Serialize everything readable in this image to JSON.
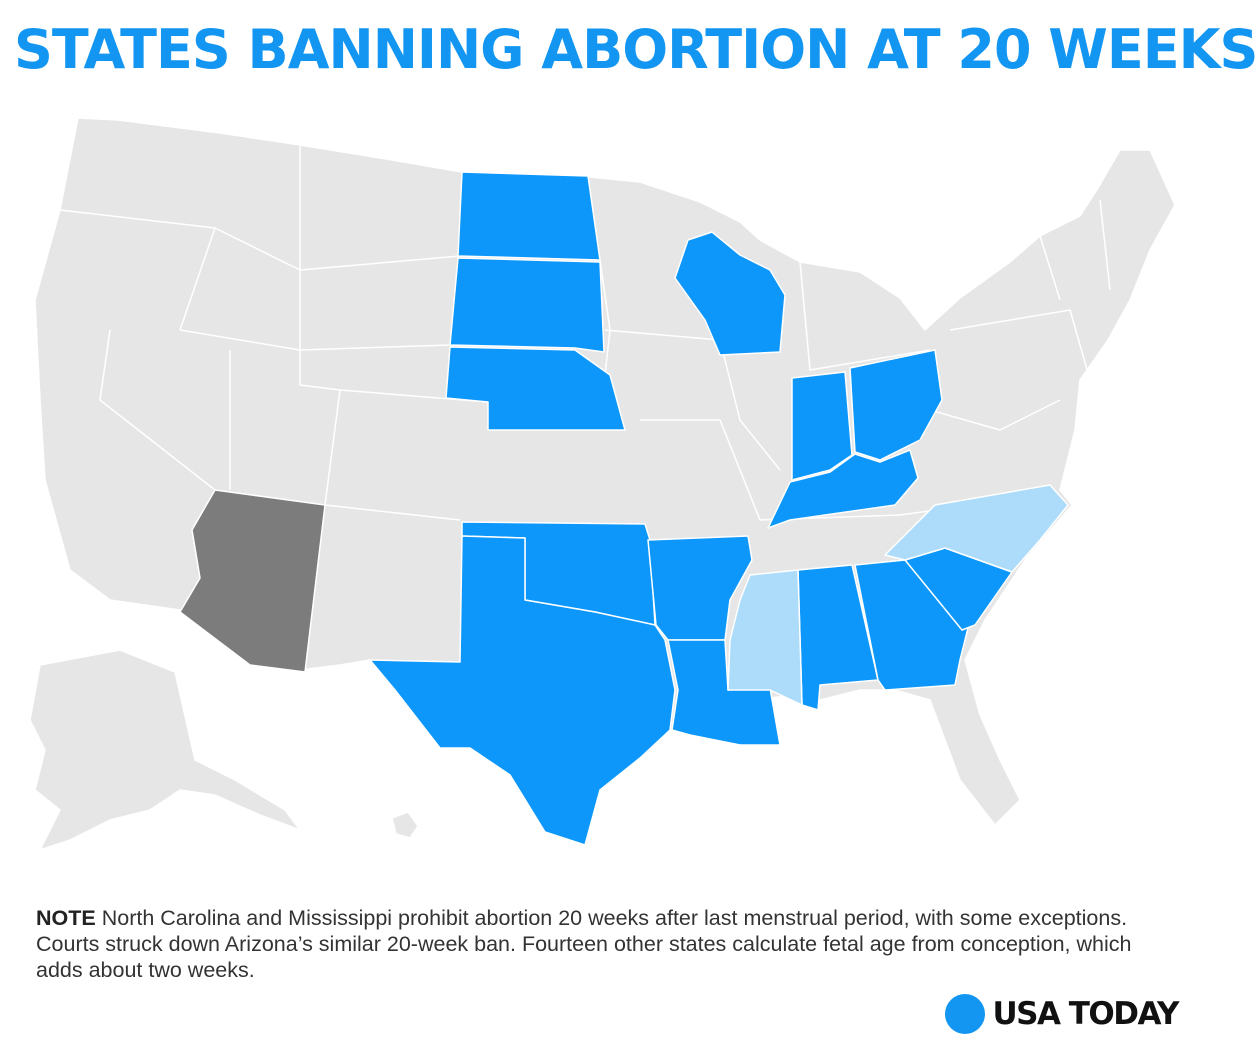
{
  "title": "STATES BANNING ABORTION AT 20 WEEKS",
  "colors": {
    "title": "#1396f1",
    "ban_20_weeks": "#0d97fb",
    "ban_after_lmp": "#acdcfa",
    "struck_down": "#7c7c7c",
    "no_ban": "#e6e6e6"
  },
  "map": {
    "region": "United States",
    "states": [
      {
        "name": "North Dakota",
        "status": "ban_20_weeks"
      },
      {
        "name": "South Dakota",
        "status": "ban_20_weeks"
      },
      {
        "name": "Nebraska",
        "status": "ban_20_weeks"
      },
      {
        "name": "Wisconsin",
        "status": "ban_20_weeks"
      },
      {
        "name": "Indiana",
        "status": "ban_20_weeks"
      },
      {
        "name": "Ohio",
        "status": "ban_20_weeks"
      },
      {
        "name": "Kentucky",
        "status": "ban_20_weeks"
      },
      {
        "name": "Oklahoma",
        "status": "ban_20_weeks"
      },
      {
        "name": "Texas",
        "status": "ban_20_weeks"
      },
      {
        "name": "Arkansas",
        "status": "ban_20_weeks"
      },
      {
        "name": "Louisiana",
        "status": "ban_20_weeks"
      },
      {
        "name": "Alabama",
        "status": "ban_20_weeks"
      },
      {
        "name": "Georgia",
        "status": "ban_20_weeks"
      },
      {
        "name": "South Carolina",
        "status": "ban_20_weeks"
      },
      {
        "name": "North Carolina",
        "status": "ban_after_lmp"
      },
      {
        "name": "Mississippi",
        "status": "ban_after_lmp"
      },
      {
        "name": "Arizona",
        "status": "struck_down"
      }
    ]
  },
  "note": {
    "label": "NOTE",
    "text": "North Carolina and Mississippi prohibit abortion 20 weeks after last menstrual period, with some exceptions. Courts struck down Arizona’s similar 20-week ban. Fourteen other states calculate fetal age from conception, which adds about two weeks."
  },
  "logo": {
    "text": "USA TODAY"
  }
}
